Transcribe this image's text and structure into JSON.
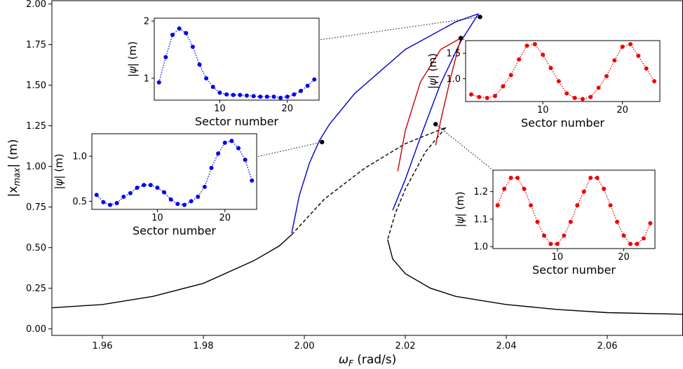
{
  "chart_data": [
    {
      "type": "line",
      "role": "main",
      "xlabel_base": "ω",
      "xlabel_sub": "F",
      "xlabel_unit": " (rad/s)",
      "ylabel_base": "|x",
      "ylabel_sub": "max",
      "ylabel_unit": "| (m)",
      "xlim": [
        1.95,
        2.075
      ],
      "ylim": [
        -0.04,
        2.02
      ],
      "xticks": [
        1.96,
        1.98,
        2.0,
        2.02,
        2.04,
        2.06
      ],
      "xtick_labels": [
        "1.96",
        "1.98",
        "2.00",
        "2.02",
        "2.04",
        "2.06"
      ],
      "yticks": [
        0.0,
        0.25,
        0.5,
        0.75,
        1.0,
        1.25,
        1.5,
        1.75,
        2.0
      ],
      "ytick_labels": [
        "0.00",
        "0.25",
        "0.50",
        "0.75",
        "1.00",
        "1.25",
        "1.50",
        "1.75",
        "2.00"
      ],
      "grid": false,
      "series": [
        {
          "color": "#000000",
          "style": "solid",
          "x": [
            1.95,
            1.96,
            1.97,
            1.98,
            1.99,
            1.995,
            1.9975
          ],
          "y": [
            0.13,
            0.15,
            0.2,
            0.28,
            0.42,
            0.51,
            0.58
          ]
        },
        {
          "color": "#000000",
          "style": "dashed",
          "x": [
            1.9975,
            2.004,
            2.012,
            2.02,
            2.028
          ],
          "y": [
            0.58,
            0.8,
            0.99,
            1.14,
            1.24
          ]
        },
        {
          "color": "#000000",
          "style": "dashed",
          "x": [
            2.028,
            2.024,
            2.02,
            2.018,
            2.0165
          ],
          "y": [
            1.24,
            1.09,
            0.86,
            0.71,
            0.55
          ]
        },
        {
          "color": "#000000",
          "style": "solid",
          "x": [
            2.0165,
            2.0175,
            2.02,
            2.025,
            2.03,
            2.04,
            2.05,
            2.06,
            2.075
          ],
          "y": [
            0.55,
            0.43,
            0.34,
            0.25,
            0.2,
            0.15,
            0.12,
            0.1,
            0.09
          ]
        },
        {
          "color": "#0000cc",
          "style": "solid",
          "x": [
            1.9975,
            1.999,
            2.001,
            2.003,
            2.005,
            2.01,
            2.02,
            2.03,
            2.0345
          ],
          "y": [
            0.59,
            0.82,
            1.02,
            1.16,
            1.26,
            1.45,
            1.72,
            1.89,
            1.94
          ]
        },
        {
          "color": "#0000cc",
          "style": "solid",
          "x": [
            2.0345,
            2.031,
            2.027,
            2.023,
            2.02,
            2.0175
          ],
          "y": [
            1.94,
            1.77,
            1.51,
            1.18,
            0.92,
            0.73
          ]
        },
        {
          "color": "#cc0000",
          "style": "solid",
          "x": [
            2.0185,
            2.02,
            2.023,
            2.027,
            2.031
          ],
          "y": [
            0.97,
            1.22,
            1.52,
            1.72,
            1.79
          ]
        },
        {
          "color": "#cc0000",
          "style": "solid",
          "x": [
            2.031,
            2.029,
            2.027,
            2.026
          ],
          "y": [
            1.79,
            1.55,
            1.28,
            1.13
          ]
        }
      ],
      "highlight_points": [
        {
          "x": 2.0035,
          "y": 1.15
        },
        {
          "x": 2.0348,
          "y": 1.92
        },
        {
          "x": 2.031,
          "y": 1.79
        },
        {
          "x": 2.026,
          "y": 1.26
        }
      ]
    },
    {
      "type": "line",
      "role": "inset",
      "xlabel": "Sector number",
      "ylabel_base": "|ψ|",
      "ylabel_unit": " (m)",
      "xlim": [
        0.3,
        24.7
      ],
      "ylim": [
        0.62,
        2.05
      ],
      "xticks": [
        10,
        20
      ],
      "yticks": [
        1,
        2
      ],
      "ytick_labels": [
        "1",
        "2"
      ],
      "color": "#0000ee",
      "style": "dotted",
      "x": [
        1,
        2,
        3,
        4,
        5,
        6,
        7,
        8,
        9,
        10,
        11,
        12,
        13,
        14,
        15,
        16,
        17,
        18,
        19,
        20,
        21,
        22,
        23,
        24
      ],
      "y": [
        0.93,
        1.37,
        1.76,
        1.87,
        1.79,
        1.55,
        1.24,
        1.0,
        0.85,
        0.75,
        0.72,
        0.71,
        0.71,
        0.7,
        0.69,
        0.68,
        0.68,
        0.68,
        0.66,
        0.68,
        0.72,
        0.78,
        0.87,
        0.98
      ]
    },
    {
      "type": "line",
      "role": "inset",
      "xlabel": "Sector number",
      "ylabel_base": "|ψ|",
      "ylabel_unit": " (m)",
      "xlim": [
        0.3,
        24.7
      ],
      "ylim": [
        0.55,
        1.75
      ],
      "xticks": [
        10,
        20
      ],
      "yticks": [
        1.0,
        1.5
      ],
      "ytick_labels": [
        "1.0",
        "1.5"
      ],
      "color": "#ee0000",
      "style": "dotted",
      "x": [
        1,
        2,
        3,
        4,
        5,
        6,
        7,
        8,
        9,
        10,
        11,
        12,
        13,
        14,
        15,
        16,
        17,
        18,
        19,
        20,
        21,
        22,
        23,
        24
      ],
      "y": [
        0.69,
        0.64,
        0.62,
        0.66,
        0.85,
        1.07,
        1.38,
        1.65,
        1.68,
        1.47,
        1.21,
        0.95,
        0.71,
        0.62,
        0.6,
        0.64,
        0.82,
        1.05,
        1.36,
        1.63,
        1.68,
        1.45,
        1.2,
        0.95
      ]
    },
    {
      "type": "line",
      "role": "inset",
      "xlabel": "Sector number",
      "ylabel_base": "|ψ|",
      "ylabel_unit": " (m)",
      "xlim": [
        0.3,
        24.7
      ],
      "ylim": [
        0.993,
        1.278
      ],
      "xticks": [
        10,
        20
      ],
      "yticks": [
        1.0,
        1.1,
        1.2
      ],
      "ytick_labels": [
        "1.0",
        "1.1",
        "1.2"
      ],
      "color": "#ee0000",
      "style": "dotted",
      "x": [
        1,
        2,
        3,
        4,
        5,
        6,
        7,
        8,
        9,
        10,
        11,
        12,
        13,
        14,
        15,
        16,
        17,
        18,
        19,
        20,
        21,
        22,
        23,
        24
      ],
      "y": [
        1.15,
        1.21,
        1.25,
        1.25,
        1.21,
        1.15,
        1.09,
        1.04,
        1.01,
        1.01,
        1.04,
        1.09,
        1.15,
        1.2,
        1.25,
        1.25,
        1.21,
        1.15,
        1.09,
        1.04,
        1.01,
        1.01,
        1.03,
        1.085
      ]
    },
    {
      "type": "line",
      "role": "inset",
      "xlabel": "Sector number",
      "ylabel_base": "|ψ|",
      "ylabel_unit": " (m)",
      "xlim": [
        0.3,
        24.7
      ],
      "ylim": [
        0.41,
        1.25
      ],
      "xticks": [
        10,
        20
      ],
      "yticks": [
        0.5,
        1.0
      ],
      "ytick_labels": [
        "0.5",
        "1.0"
      ],
      "color": "#0000ee",
      "style": "dotted",
      "x": [
        1,
        2,
        3,
        4,
        5,
        6,
        7,
        8,
        9,
        10,
        11,
        12,
        13,
        14,
        15,
        16,
        17,
        18,
        19,
        20,
        21,
        22,
        23,
        24
      ],
      "y": [
        0.57,
        0.49,
        0.46,
        0.48,
        0.55,
        0.59,
        0.65,
        0.68,
        0.68,
        0.65,
        0.6,
        0.52,
        0.47,
        0.46,
        0.5,
        0.55,
        0.66,
        0.87,
        1.03,
        1.15,
        1.17,
        1.09,
        0.96,
        0.73
      ]
    }
  ]
}
